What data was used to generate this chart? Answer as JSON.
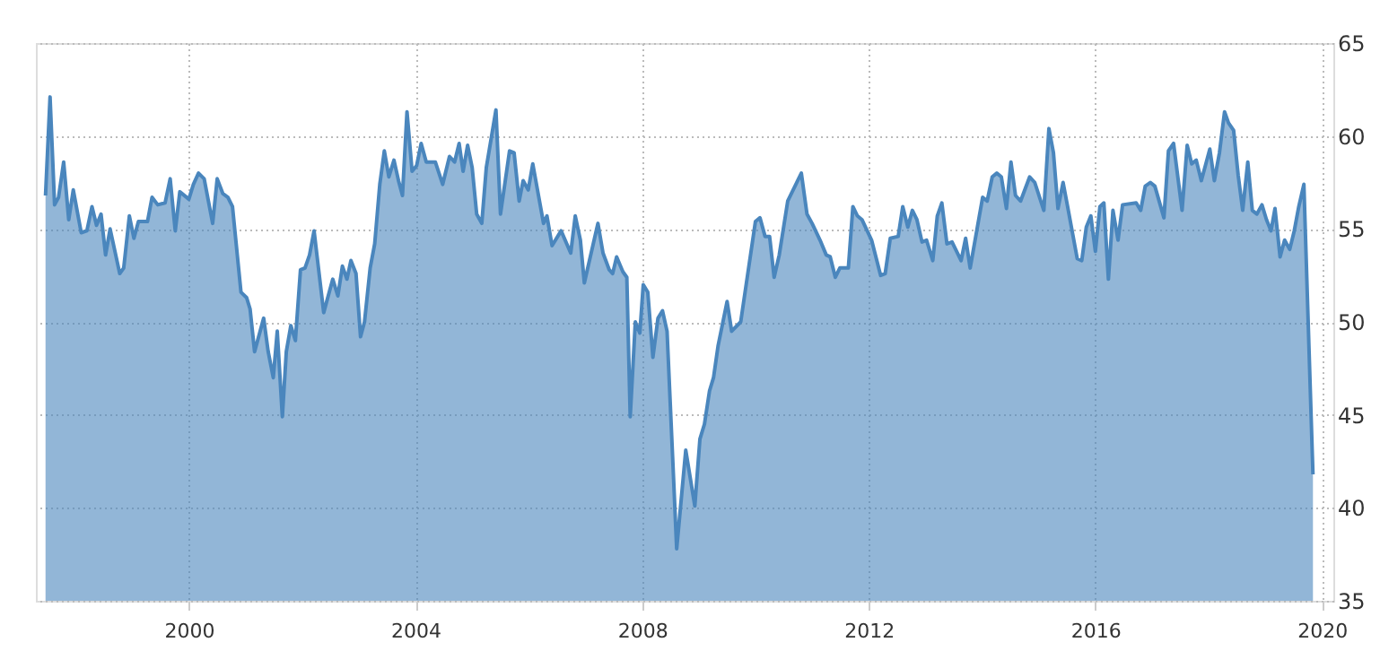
{
  "chart_data": {
    "type": "area",
    "x": [
      1997.47,
      1997.55,
      1997.63,
      1997.7,
      1997.79,
      1997.88,
      1997.96,
      1998.1,
      1998.2,
      1998.29,
      1998.37,
      1998.45,
      1998.53,
      1998.61,
      1998.78,
      1998.85,
      1998.95,
      1999.03,
      1999.11,
      1999.27,
      1999.35,
      1999.45,
      1999.58,
      1999.67,
      1999.76,
      1999.84,
      2000.0,
      2000.08,
      2000.17,
      2000.27,
      2000.42,
      2000.5,
      2000.6,
      2000.69,
      2000.77,
      2000.92,
      2001.02,
      2001.08,
      2001.16,
      2001.32,
      2001.4,
      2001.49,
      2001.56,
      2001.65,
      2001.72,
      2001.8,
      2001.88,
      2001.97,
      2002.05,
      2002.13,
      2002.21,
      2002.38,
      2002.54,
      2002.63,
      2002.71,
      2002.79,
      2002.86,
      2002.95,
      2003.03,
      2003.1,
      2003.2,
      2003.28,
      2003.37,
      2003.45,
      2003.53,
      2003.62,
      2003.7,
      2003.77,
      2003.85,
      2003.94,
      2004.02,
      2004.1,
      2004.19,
      2004.35,
      2004.48,
      2004.6,
      2004.69,
      2004.77,
      2004.84,
      2004.92,
      2005.0,
      2005.08,
      2005.17,
      2005.25,
      2005.42,
      2005.5,
      2005.66,
      2005.74,
      2005.83,
      2005.9,
      2005.99,
      2006.07,
      2006.26,
      2006.32,
      2006.41,
      2006.57,
      2006.74,
      2006.82,
      2006.91,
      2006.98,
      2007.22,
      2007.31,
      2007.42,
      2007.48,
      2007.55,
      2007.66,
      2007.73,
      2007.79,
      2007.88,
      2007.96,
      2008.02,
      2008.1,
      2008.19,
      2008.28,
      2008.36,
      2008.44,
      2008.61,
      2008.77,
      2008.93,
      2009.02,
      2009.1,
      2009.19,
      2009.26,
      2009.34,
      2009.5,
      2009.58,
      2009.74,
      2010.0,
      2010.08,
      2010.17,
      2010.25,
      2010.33,
      2010.42,
      2010.57,
      2010.81,
      2010.91,
      2011.0,
      2011.14,
      2011.25,
      2011.32,
      2011.41,
      2011.49,
      2011.64,
      2011.72,
      2011.8,
      2011.88,
      2012.05,
      2012.21,
      2012.29,
      2012.38,
      2012.52,
      2012.6,
      2012.69,
      2012.77,
      2012.85,
      2012.94,
      2013.02,
      2013.13,
      2013.21,
      2013.29,
      2013.38,
      2013.47,
      2013.63,
      2013.71,
      2013.79,
      2014.01,
      2014.09,
      2014.18,
      2014.26,
      2014.34,
      2014.43,
      2014.51,
      2014.59,
      2014.68,
      2014.84,
      2014.93,
      2015.09,
      2015.18,
      2015.26,
      2015.34,
      2015.43,
      2015.51,
      2015.68,
      2015.76,
      2015.84,
      2015.92,
      2016.0,
      2016.08,
      2016.15,
      2016.23,
      2016.31,
      2016.4,
      2016.48,
      2016.72,
      2016.8,
      2016.88,
      2016.97,
      2017.05,
      2017.21,
      2017.29,
      2017.38,
      2017.53,
      2017.62,
      2017.7,
      2017.78,
      2017.87,
      2018.02,
      2018.1,
      2018.19,
      2018.28,
      2018.35,
      2018.44,
      2018.52,
      2018.6,
      2018.69,
      2018.77,
      2018.85,
      2018.94,
      2019.02,
      2019.1,
      2019.17,
      2019.26,
      2019.34,
      2019.43,
      2019.51,
      2019.59,
      2019.68,
      2019.84
    ],
    "series": [
      {
        "color": "#4a86bd",
        "values": [
          56.8,
          62.1,
          56.3,
          56.7,
          58.6,
          55.5,
          57.1,
          54.8,
          54.9,
          56.2,
          55.2,
          55.8,
          53.6,
          55.0,
          52.6,
          52.9,
          55.7,
          54.5,
          55.4,
          55.4,
          56.7,
          56.3,
          56.4,
          57.7,
          54.9,
          57.0,
          56.6,
          57.4,
          58.0,
          57.7,
          55.3,
          57.7,
          56.9,
          56.7,
          56.2,
          51.6,
          51.3,
          50.7,
          48.4,
          50.2,
          48.4,
          47.0,
          49.5,
          44.9,
          48.4,
          49.8,
          49.0,
          52.8,
          52.9,
          53.6,
          54.9,
          50.5,
          52.3,
          51.4,
          53.0,
          52.3,
          53.3,
          52.6,
          49.2,
          50.0,
          52.9,
          54.2,
          57.4,
          59.2,
          57.8,
          58.7,
          57.6,
          56.8,
          61.3,
          58.1,
          58.4,
          59.6,
          58.6,
          58.6,
          57.4,
          58.9,
          58.6,
          59.6,
          58.1,
          59.5,
          58.3,
          55.8,
          55.3,
          58.3,
          61.4,
          55.8,
          59.2,
          59.1,
          56.5,
          57.6,
          57.1,
          58.5,
          55.3,
          55.7,
          54.1,
          54.9,
          53.7,
          55.7,
          54.4,
          52.1,
          55.3,
          53.7,
          52.8,
          52.6,
          53.5,
          52.7,
          52.4,
          44.9,
          50.0,
          49.4,
          52.0,
          51.6,
          48.1,
          50.2,
          50.6,
          49.5,
          37.8,
          43.1,
          40.1,
          43.7,
          44.5,
          46.3,
          47.0,
          48.7,
          51.1,
          49.5,
          50.0,
          55.4,
          55.6,
          54.6,
          54.6,
          52.4,
          53.6,
          56.5,
          58.0,
          55.8,
          55.3,
          54.4,
          53.6,
          53.5,
          52.4,
          52.9,
          52.9,
          56.2,
          55.7,
          55.5,
          54.4,
          52.5,
          52.6,
          54.5,
          54.6,
          56.2,
          55.1,
          56.0,
          55.5,
          54.3,
          54.4,
          53.3,
          55.7,
          56.4,
          54.2,
          54.3,
          53.3,
          54.5,
          52.9,
          56.7,
          56.5,
          57.8,
          58.0,
          57.8,
          56.1,
          58.6,
          56.8,
          56.5,
          57.8,
          57.5,
          56.0,
          60.4,
          59.1,
          56.1,
          57.5,
          56.2,
          53.4,
          53.3,
          55.1,
          55.7,
          53.8,
          56.2,
          56.4,
          52.3,
          56.0,
          54.4,
          56.3,
          56.4,
          56.0,
          57.3,
          57.5,
          57.3,
          55.6,
          59.2,
          59.6,
          56.0,
          59.5,
          58.5,
          58.7,
          57.6,
          59.3,
          57.6,
          59.1,
          61.3,
          60.7,
          60.3,
          57.9,
          56.0,
          58.6,
          56.0,
          55.8,
          56.3,
          55.5,
          54.9,
          56.1,
          53.5,
          54.4,
          53.9,
          54.9,
          56.2,
          57.4,
          41.8
        ]
      }
    ],
    "xlim": [
      1997.3,
      2020.2
    ],
    "xticks": [
      2000,
      2004,
      2008,
      2012,
      2016,
      2020
    ],
    "ylim": [
      35,
      65
    ],
    "yticks": [
      35,
      40,
      45,
      50,
      55,
      60,
      65
    ],
    "grid": true,
    "marker": "none",
    "line_style": "solid"
  }
}
